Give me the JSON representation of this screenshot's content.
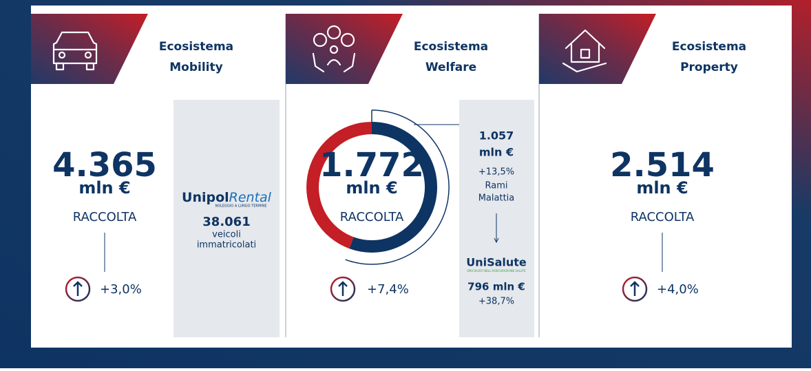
{
  "panels": [
    {
      "title_line1": "Ecosistema",
      "title_line2": "Mobility",
      "amount": "4.365",
      "unit": "mln €",
      "label": "RACCOLTA",
      "change": "+3,0%",
      "side": {
        "brand": "Unipol",
        "brand_accent": "Rental",
        "tagline": "NOLEGGIO A LUNGO TERMINE",
        "value": "38.061",
        "line1": "veicoli",
        "line2": "immatricolati"
      }
    },
    {
      "title_line1": "Ecosistema",
      "title_line2": "Welfare",
      "amount": "1.772",
      "unit": "mln €",
      "label": "RACCOLTA",
      "change": "+7,4%",
      "side": {
        "value": "1.057",
        "unit": "mln €",
        "change": "+13,5%",
        "line1": "Rami",
        "line2": "Malattia",
        "brand": "UniSalute",
        "tagline": "SPECIALISTI NELL'ASSICURAZIONE SALUTE",
        "sub_value": "796 mln €",
        "sub_change": "+38,7%"
      }
    },
    {
      "title_line1": "Ecosistema",
      "title_line2": "Property",
      "amount": "2.514",
      "unit": "mln €",
      "label": "RACCOLTA",
      "change": "+4,0%"
    }
  ]
}
